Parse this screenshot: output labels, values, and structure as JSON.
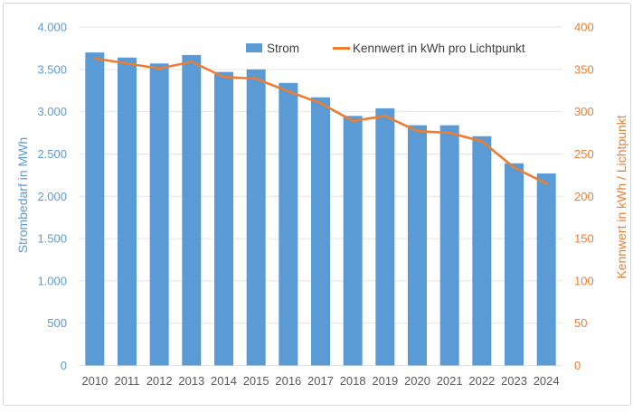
{
  "chart_data": {
    "type": "combo-bar-line",
    "categories": [
      "2010",
      "2011",
      "2012",
      "2013",
      "2014",
      "2015",
      "2016",
      "2017",
      "2018",
      "2019",
      "2020",
      "2021",
      "2022",
      "2023",
      "2024"
    ],
    "series": [
      {
        "name": "Strom",
        "type": "bar",
        "axis": "left",
        "color": "#5b9bd5",
        "values": [
          3700,
          3640,
          3570,
          3670,
          3470,
          3500,
          3340,
          3170,
          2950,
          3040,
          2840,
          2840,
          2710,
          2390,
          2270
        ]
      },
      {
        "name": "Kennwert in kWh pro Lichtpunkt",
        "type": "line",
        "axis": "right",
        "color": "#ed7d31",
        "values": [
          363,
          357,
          351,
          359,
          341,
          339,
          324,
          310,
          289,
          295,
          277,
          275,
          265,
          234,
          215
        ]
      }
    ],
    "left_axis": {
      "label": "Strombedarf in MWh",
      "min": 0,
      "max": 4000,
      "step": 500,
      "tick_labels": [
        "0",
        "500",
        "1.000",
        "1.500",
        "2.000",
        "2.500",
        "3.000",
        "3.500",
        "4.000"
      ],
      "color": "#5b9bd5"
    },
    "right_axis": {
      "label": "Kennwert in kWh / Lichtpunkt",
      "min": 0,
      "max": 400,
      "step": 50,
      "tick_labels": [
        "0",
        "50",
        "100",
        "150",
        "200",
        "250",
        "300",
        "350",
        "400"
      ],
      "color": "#ed7d31"
    },
    "x_axis": {
      "color": "#595959"
    },
    "grid": true,
    "grid_color": "#e4e4e4",
    "legend_position": "top"
  }
}
